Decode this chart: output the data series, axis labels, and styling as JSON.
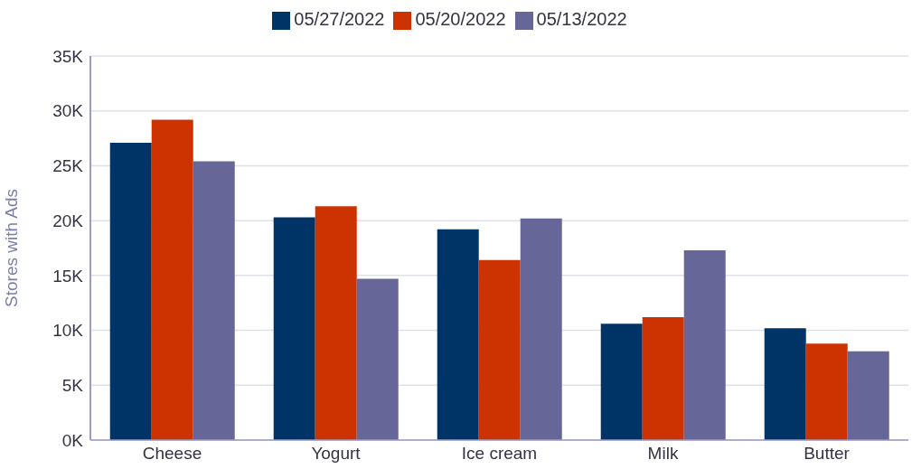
{
  "chart_data": {
    "type": "bar",
    "ylabel": "Stores with Ads",
    "categories": [
      "Cheese",
      "Yogurt",
      "Ice cream",
      "Milk",
      "Butter"
    ],
    "series": [
      {
        "name": "05/27/2022",
        "color": "#003366",
        "values": [
          27100,
          20300,
          19200,
          10600,
          10200
        ]
      },
      {
        "name": "05/20/2022",
        "color": "#cc3300",
        "values": [
          29200,
          21300,
          16400,
          11200,
          8800
        ]
      },
      {
        "name": "05/13/2022",
        "color": "#666699",
        "values": [
          25400,
          14700,
          20200,
          17300,
          8100
        ]
      }
    ],
    "ylim": [
      0,
      35000
    ],
    "yticks": [
      {
        "value": 0,
        "label": "0K"
      },
      {
        "value": 5000,
        "label": "5K"
      },
      {
        "value": 10000,
        "label": "10K"
      },
      {
        "value": 15000,
        "label": "15K"
      },
      {
        "value": 20000,
        "label": "20K"
      },
      {
        "value": 25000,
        "label": "25K"
      },
      {
        "value": 30000,
        "label": "30K"
      },
      {
        "value": 35000,
        "label": "35K"
      }
    ],
    "grid": "y",
    "legend": "top"
  }
}
